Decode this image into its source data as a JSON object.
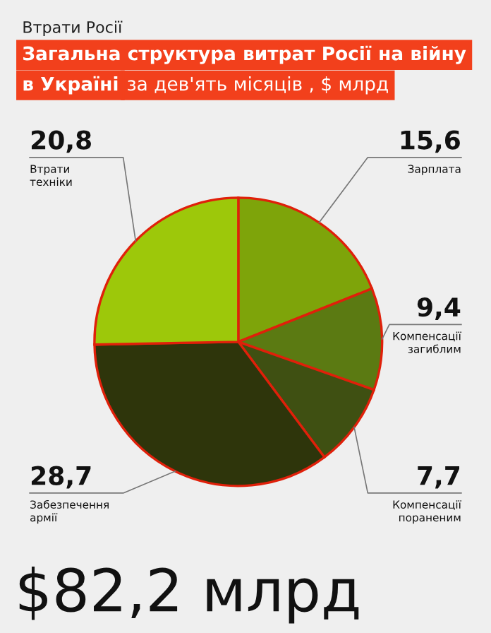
{
  "chart_data": {
    "type": "pie",
    "title": "Загальна структура витрат Росії на війну\nв Україні",
    "subtitle": "за дев'ять місяців , $ млрд",
    "categories": [
      "Зарплата",
      "Компенсації\nзагиблим",
      "Компенсації\nпораненим",
      "Забезпечення\nармії",
      "Втрати\nтехніки"
    ],
    "values": [
      15.6,
      9.4,
      7.7,
      28.7,
      20.8
    ],
    "value_labels": [
      "15,6",
      "9,4",
      "7,7",
      "28,7",
      "20,8"
    ],
    "colors": [
      "#7ea40a",
      "#5b7a12",
      "#3f5012",
      "#2e350b",
      "#9dc80a"
    ],
    "annotations": [
      "Втрати Росії",
      "$82,2 млрд"
    ]
  }
}
